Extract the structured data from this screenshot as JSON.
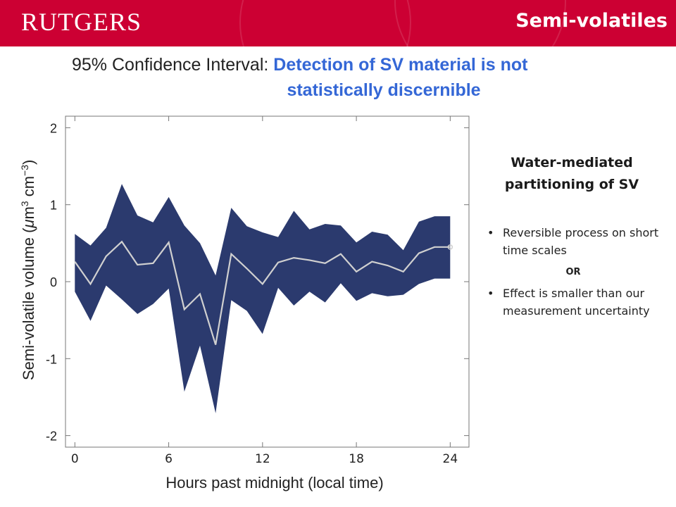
{
  "header": {
    "logo": "RUTGERS",
    "section_title": "Semi-volatiles"
  },
  "headline": {
    "prefix": "95% Confidence Interval: ",
    "highlight_line1": "Detection of SV material is not",
    "highlight_line2": "statistically discernible"
  },
  "side_panel": {
    "title_line1": "Water-mediated",
    "title_line2": "partitioning of SV",
    "bullets": [
      {
        "marker": "•",
        "text": "Reversible process on short time scales"
      },
      {
        "marker": "•",
        "text": "Effect is smaller than our measurement uncertainty"
      }
    ],
    "or_label": "OR"
  },
  "colors": {
    "brand_red": "#cc0033",
    "headline_blue": "#3467d6",
    "band_fill": "#2b3a6e",
    "mean_line": "#d0d0d0"
  },
  "chart_data": {
    "type": "area",
    "title": "",
    "xlabel": "Hours past midnight (local time)",
    "ylabel_parts": [
      "Semi-volatile volume (",
      "μ",
      "m",
      "3",
      " cm",
      "−3",
      ")"
    ],
    "xlim": [
      -0.6,
      25.2
    ],
    "ylim": [
      -2.15,
      2.15
    ],
    "xticks": [
      0,
      6,
      12,
      18,
      24
    ],
    "yticks": [
      2,
      1,
      0,
      -1,
      -2
    ],
    "x": [
      0,
      1,
      2,
      3,
      4,
      5,
      6,
      7,
      8,
      9,
      10,
      11,
      12,
      13,
      14,
      15,
      16,
      17,
      18,
      19,
      20,
      21,
      22,
      23,
      24
    ],
    "series": [
      {
        "role": "upper",
        "values": [
          0.62,
          0.47,
          0.7,
          1.27,
          0.86,
          0.77,
          1.1,
          0.73,
          0.5,
          0.08,
          0.96,
          0.72,
          0.64,
          0.58,
          0.92,
          0.68,
          0.75,
          0.73,
          0.51,
          0.65,
          0.61,
          0.41,
          0.78,
          0.85,
          0.85
        ]
      },
      {
        "role": "mean",
        "values": [
          0.26,
          -0.03,
          0.33,
          0.52,
          0.22,
          0.24,
          0.51,
          -0.36,
          -0.16,
          -0.82,
          0.36,
          0.17,
          -0.03,
          0.25,
          0.31,
          0.28,
          0.24,
          0.36,
          0.13,
          0.26,
          0.21,
          0.13,
          0.37,
          0.45,
          0.45
        ]
      },
      {
        "role": "lower",
        "values": [
          -0.13,
          -0.51,
          -0.05,
          -0.23,
          -0.42,
          -0.29,
          -0.09,
          -1.43,
          -0.83,
          -1.71,
          -0.24,
          -0.38,
          -0.68,
          -0.08,
          -0.31,
          -0.13,
          -0.27,
          -0.02,
          -0.25,
          -0.15,
          -0.19,
          -0.17,
          -0.03,
          0.04,
          0.04
        ]
      }
    ]
  }
}
